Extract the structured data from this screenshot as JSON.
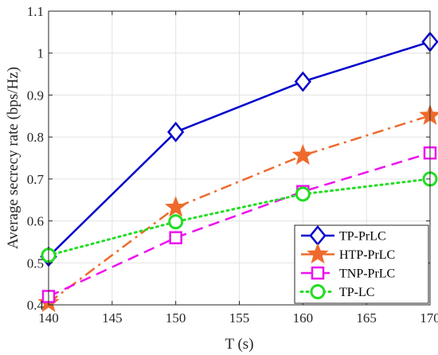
{
  "chart_data": {
    "type": "line",
    "title": "",
    "xlabel": "T (s)",
    "ylabel": "Average secrecy rate (bps/Hz)",
    "x": [
      140,
      150,
      160,
      170
    ],
    "xlim": [
      140,
      170
    ],
    "ylim": [
      0.4,
      1.1
    ],
    "xticks": [
      "140",
      "145",
      "150",
      "155",
      "160",
      "165",
      "170"
    ],
    "yticks": [
      "0.4",
      "0.5",
      "0.6",
      "0.7",
      "0.8",
      "0.9",
      "1",
      "1.1"
    ],
    "grid": true,
    "legend_position": "bottom-right",
    "series": [
      {
        "name": "TP-PrLC",
        "values": [
          0.515,
          0.812,
          0.932,
          1.027
        ],
        "color": "#0000CC",
        "linestyle": "solid",
        "marker": "diamond"
      },
      {
        "name": "HTP-PrLC",
        "values": [
          0.405,
          0.632,
          0.756,
          0.851
        ],
        "color": "#EE6A2C",
        "linestyle": "dashdot",
        "marker": "star"
      },
      {
        "name": "TNP-PrLC",
        "values": [
          0.42,
          0.56,
          0.67,
          0.762
        ],
        "color": "#EE11EE",
        "linestyle": "dashed",
        "marker": "square"
      },
      {
        "name": "TP-LC",
        "values": [
          0.518,
          0.598,
          0.664,
          0.7
        ],
        "color": "#22DD22",
        "linestyle": "dotted",
        "marker": "circle"
      }
    ]
  }
}
